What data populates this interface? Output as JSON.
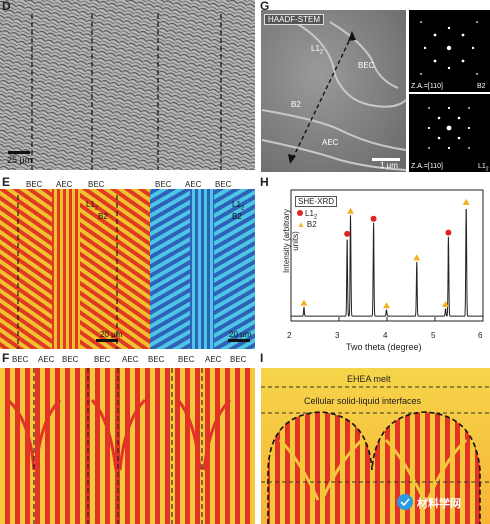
{
  "panelD": {
    "letter": "D",
    "scale": "25 μm"
  },
  "panelE": {
    "letter": "E",
    "top_labels_left": [
      "BEC",
      "AEC",
      "BEC"
    ],
    "top_labels_right": [
      "BEC",
      "AEC",
      "BEC"
    ],
    "phases_left": [
      "L1",
      "B2"
    ],
    "phases_right": [
      "L1",
      "B2"
    ],
    "phase_sub": "2",
    "scale_left": "20 μm",
    "scale_right": "20 μm"
  },
  "panelF": {
    "letter": "F",
    "labels": [
      "BEC",
      "AEC",
      "BEC",
      "BEC",
      "AEC",
      "BEC",
      "BEC",
      "AEC",
      "BEC"
    ]
  },
  "panelG": {
    "letter": "G",
    "mode": "HAADF-STEM",
    "labels": [
      "L1",
      "BEC",
      "B2",
      "AEC"
    ],
    "label_sub": "2",
    "scale": "1 μm",
    "saed_top_za": "Z.A.=[110]",
    "saed_top_phase": "B2",
    "saed_bottom_za": "Z.A.=[110]",
    "saed_bottom_phase": "L1",
    "saed_bottom_sub": "2"
  },
  "panelH": {
    "letter": "H",
    "chart_data": {
      "type": "scatter",
      "title": "SHE-XRD",
      "xlabel": "Two theta (degree)",
      "ylabel": "Intensity (arbitrary units)",
      "xlim": [
        2,
        6
      ],
      "xticks": [
        "2",
        "3",
        "4",
        "5",
        "6"
      ],
      "legend": [
        {
          "name": "L1",
          "sub": "2",
          "marker": "circle",
          "color": "#e32222"
        },
        {
          "name": "B2",
          "marker": "triangle",
          "color": "#f2b01e"
        }
      ],
      "peaks": [
        {
          "x": 2.27,
          "height": 0.07,
          "phase": "B2"
        },
        {
          "x": 3.17,
          "height": 0.62,
          "phase": "L12"
        },
        {
          "x": 3.24,
          "height": 0.8,
          "phase": "B2"
        },
        {
          "x": 3.72,
          "height": 0.74,
          "phase": "L12"
        },
        {
          "x": 3.99,
          "height": 0.05,
          "phase": "B2"
        },
        {
          "x": 4.62,
          "height": 0.43,
          "phase": "B2"
        },
        {
          "x": 5.22,
          "height": 0.06,
          "phase": "B2"
        },
        {
          "x": 5.28,
          "height": 0.63,
          "phase": "L12"
        },
        {
          "x": 5.65,
          "height": 0.87,
          "phase": "B2"
        }
      ],
      "legend_placement": "top-left"
    }
  },
  "panelI": {
    "letter": "I",
    "melt": "EHEA melt",
    "interface": "Cellular solid-liquid interfaces"
  },
  "watermark": "材料学网",
  "colors": {
    "red": "#e33226",
    "yellow": "#f3c83a",
    "blue": "#2f6fc4",
    "cyan": "#4cc7e6"
  }
}
